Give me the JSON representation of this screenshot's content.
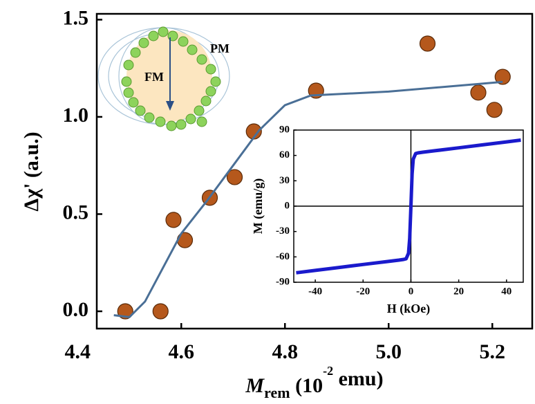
{
  "chart_data": [
    {
      "type": "scatter",
      "xlabel": [
        "M",
        "rem",
        " (10",
        "-2",
        " emu)"
      ],
      "ylabel": "Δχ' (a.u.)",
      "annotations": [
        "FM",
        "PM"
      ],
      "xlim": [
        4.437,
        5.277
      ],
      "ylim": [
        -0.089,
        1.53
      ],
      "xticks": [
        4.4,
        4.6,
        4.8,
        {
          "value": 5,
          "label": "5.0"
        },
        5.2
      ],
      "yticks": [
        {
          "value": 0,
          "label": "0.0"
        },
        0.5,
        {
          "value": 1,
          "label": "1.0"
        },
        1.5
      ],
      "series": [
        {
          "name": "data",
          "color": "#b5581c",
          "x": [
            4.492,
            4.56,
            4.585,
            4.607,
            4.655,
            4.703,
            4.74,
            4.86,
            5.075,
            5.173,
            5.204,
            5.22
          ],
          "values": [
            0,
            0,
            0.47,
            0.366,
            0.584,
            0.69,
            0.925,
            1.135,
            1.377,
            1.125,
            1.036,
            1.206
          ]
        },
        {
          "name": "fit",
          "color": "#4a6f96",
          "kind": "line",
          "x": [
            4.47,
            4.5,
            4.53,
            4.56,
            4.6,
            4.65,
            4.7,
            4.75,
            4.8,
            4.85,
            5.0,
            5.22
          ],
          "values": [
            -0.02,
            -0.03,
            0.05,
            0.2,
            0.4,
            0.57,
            0.75,
            0.93,
            1.06,
            1.11,
            1.13,
            1.18
          ]
        }
      ]
    },
    {
      "type": "line",
      "xlabel": "H (kOe)",
      "ylabel": "M (emu/g)",
      "xlim": [
        -49,
        47
      ],
      "ylim": [
        -90,
        90
      ],
      "xticks": [
        -40,
        -20,
        0,
        20,
        40
      ],
      "yticks": [
        -90,
        -60,
        -30,
        0,
        30,
        60,
        90
      ],
      "series": [
        {
          "name": "M-H",
          "color": "#1a1acc",
          "x": [
            -48,
            -40,
            -30,
            -20,
            -10,
            -5,
            -3,
            -2,
            -1,
            -0.5,
            0,
            0.5,
            1,
            2,
            3,
            5,
            10,
            20,
            30,
            40,
            46
          ],
          "values": [
            -78.8,
            -76,
            -72.5,
            -69,
            -65.5,
            -63.8,
            -63,
            -62.3,
            -55.7,
            -38.2,
            0,
            38.2,
            55.7,
            62.3,
            63,
            63.8,
            65.5,
            69,
            72.5,
            76,
            78.1
          ]
        }
      ]
    }
  ]
}
